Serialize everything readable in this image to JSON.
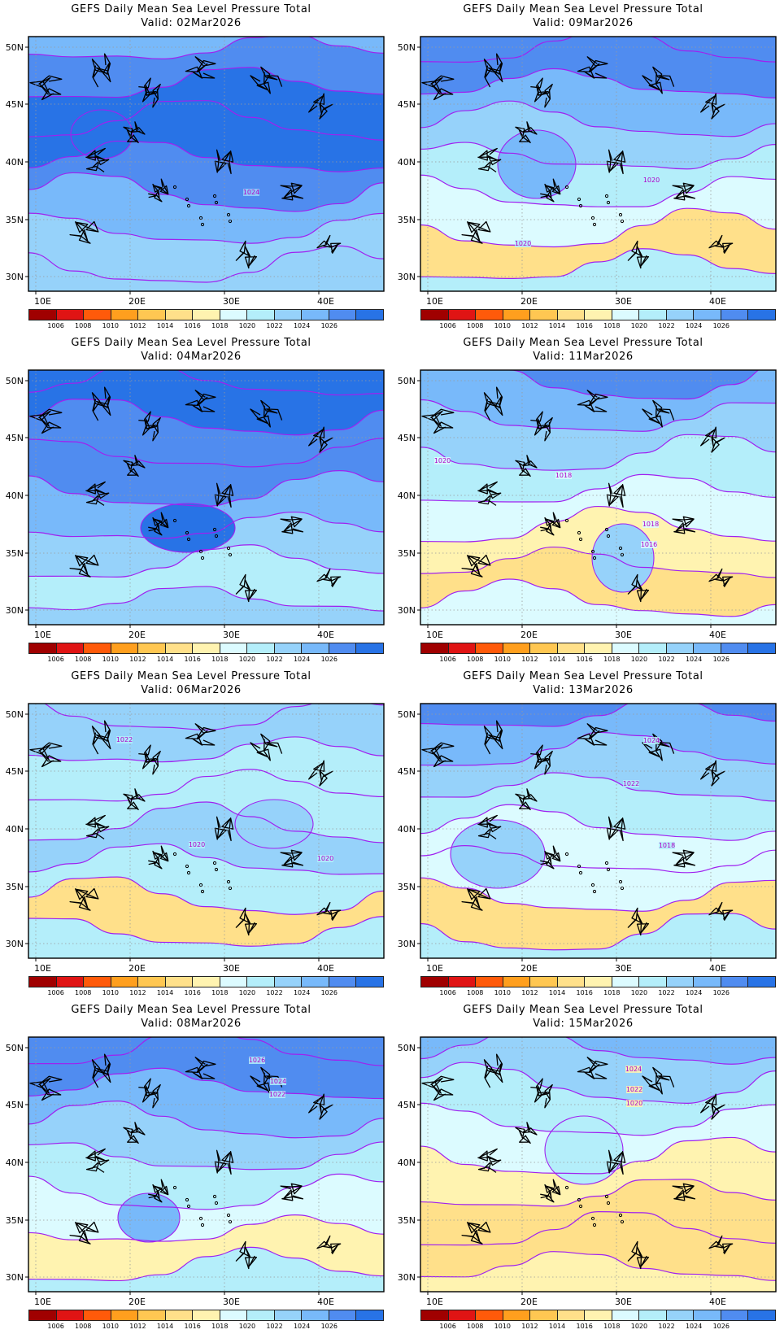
{
  "colorbar": {
    "labels": [
      "1006",
      "1008",
      "1010",
      "1012",
      "1014",
      "1016",
      "1018",
      "1020",
      "1022",
      "1024",
      "1026"
    ],
    "colors": [
      "#a00000",
      "#e01414",
      "#ff5a0a",
      "#ff9f1e",
      "#ffc752",
      "#ffe08a",
      "#fff3b0",
      "#dcfbff",
      "#b4eefa",
      "#96d2fa",
      "#78b9fa",
      "#508cf0",
      "#2873e6"
    ]
  },
  "contour_color": "#a020f0",
  "axes": {
    "lat_labels": [
      "50N",
      "45N",
      "40N",
      "35N",
      "30N"
    ],
    "lon_labels": [
      "10E",
      "20E",
      "30E",
      "40E"
    ]
  },
  "panels": [
    {
      "title": "GEFS Daily Mean Sea Level Pressure Total",
      "valid": "Valid: 02Mar2026",
      "base": 9,
      "bands": [
        10,
        11,
        12,
        12,
        11,
        10,
        9
      ],
      "contour_labels": [
        {
          "text": "1024"
        }
      ]
    },
    {
      "title": "GEFS Daily Mean Sea Level Pressure Total",
      "valid": "Valid: 09Mar2026",
      "base": 8,
      "bands": [
        11,
        11,
        10,
        9,
        8,
        7,
        5
      ],
      "contour_labels": [
        {
          "text": "1020"
        },
        {
          "text": "1020"
        }
      ]
    },
    {
      "title": "GEFS Daily Mean Sea Level Pressure Total",
      "valid": "Valid: 04Mar2026",
      "base": 9,
      "bands": [
        12,
        12,
        11,
        11,
        10,
        9,
        8
      ],
      "contour_labels": []
    },
    {
      "title": "GEFS Daily Mean Sea Level Pressure Total",
      "valid": "Valid: 11Mar2026",
      "base": 7,
      "bands": [
        11,
        10,
        9,
        8,
        7,
        6,
        5
      ],
      "contour_labels": [
        {
          "text": "1020"
        },
        {
          "text": "1018"
        },
        {
          "text": "1018"
        },
        {
          "text": "1016"
        }
      ]
    },
    {
      "title": "GEFS Daily Mean Sea Level Pressure Total",
      "valid": "Valid: 06Mar2026",
      "base": 8,
      "bands": [
        9,
        9,
        8,
        8,
        9,
        8,
        5
      ],
      "contour_labels": [
        {
          "text": "1022"
        },
        {
          "text": "1020"
        },
        {
          "text": "1020"
        }
      ]
    },
    {
      "title": "GEFS Daily Mean Sea Level Pressure Total",
      "valid": "Valid: 13Mar2026",
      "base": 8,
      "bands": [
        11,
        10,
        9,
        8,
        7,
        7,
        5
      ],
      "contour_labels": [
        {
          "text": "1024"
        },
        {
          "text": "1022"
        },
        {
          "text": "1018"
        }
      ]
    },
    {
      "title": "GEFS Daily Mean Sea Level Pressure Total",
      "valid": "Valid: 08Mar2026",
      "base": 8,
      "bands": [
        11,
        11,
        10,
        9,
        8,
        7,
        6
      ],
      "contour_labels": [
        {
          "text": "1026"
        },
        {
          "text": "1024"
        },
        {
          "text": "1022"
        }
      ]
    },
    {
      "title": "GEFS Daily Mean Sea Level Pressure Total",
      "valid": "Valid: 15Mar2026",
      "base": 6,
      "bands": [
        10,
        9,
        8,
        7,
        6,
        5,
        5
      ],
      "contour_labels": [
        {
          "text": "1024"
        },
        {
          "text": "1022"
        },
        {
          "text": "1020"
        }
      ]
    }
  ]
}
